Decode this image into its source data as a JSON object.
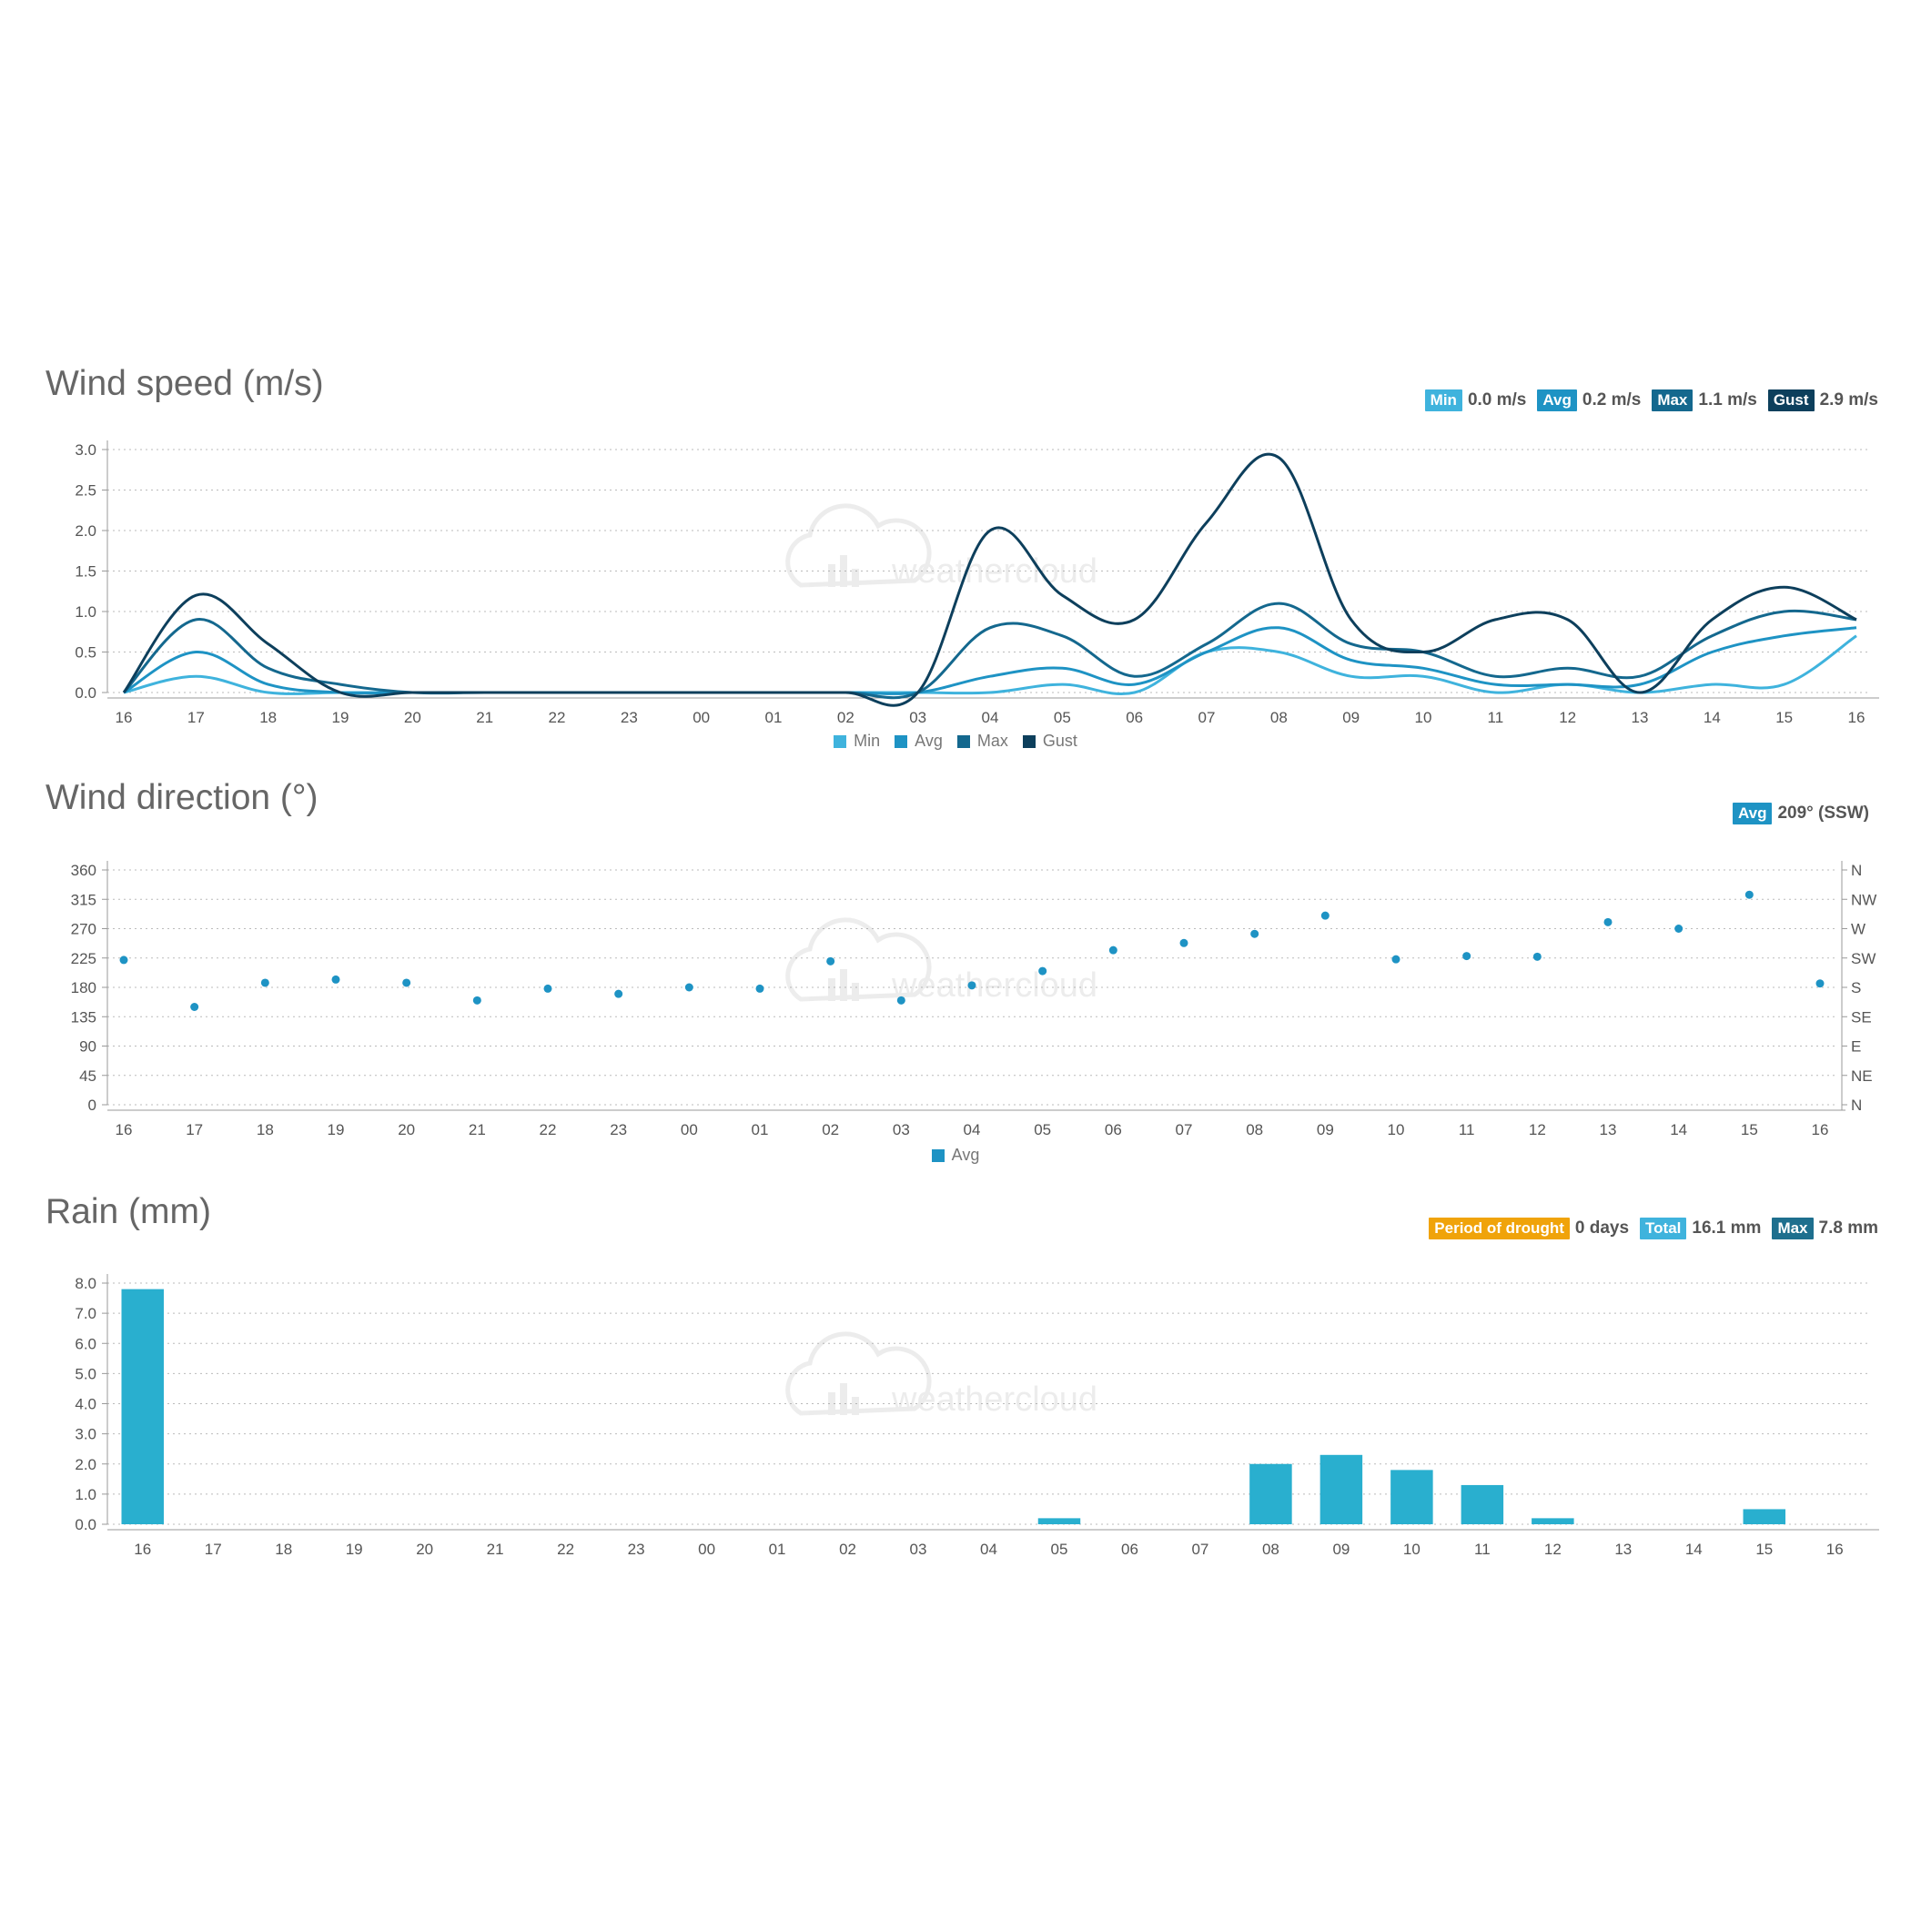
{
  "wind_speed": {
    "title": "Wind speed (m/s)",
    "stats": [
      {
        "label": "Min",
        "value": "0.0 m/s",
        "color": "#3fb3dd"
      },
      {
        "label": "Avg",
        "value": "0.2 m/s",
        "color": "#1e93c4"
      },
      {
        "label": "Max",
        "value": "1.1 m/s",
        "color": "#14688e"
      },
      {
        "label": "Gust",
        "value": "2.9 m/s",
        "color": "#0d3f5c"
      }
    ],
    "legend": [
      {
        "label": "Min",
        "color": "#3fb3dd"
      },
      {
        "label": "Avg",
        "color": "#1e93c4"
      },
      {
        "label": "Max",
        "color": "#14688e"
      },
      {
        "label": "Gust",
        "color": "#0d3f5c"
      }
    ]
  },
  "wind_direction": {
    "title": "Wind direction (°)",
    "stats": [
      {
        "label": "Avg",
        "value": "209° (SSW)",
        "color": "#1e93c4"
      }
    ],
    "legend": [
      {
        "label": "Avg",
        "color": "#1e93c4"
      }
    ]
  },
  "rain": {
    "title": "Rain (mm)",
    "stats": [
      {
        "label": "Period of drought",
        "value": "0 days",
        "color": "#f0a30a"
      },
      {
        "label": "Total",
        "value": "16.1 mm",
        "color": "#3fb3dd"
      },
      {
        "label": "Max",
        "value": "7.8 mm",
        "color": "#1e6f8e"
      }
    ]
  },
  "watermark": "weathercloud",
  "chart_data": [
    {
      "type": "line",
      "title": "Wind speed (m/s)",
      "categories": [
        "16",
        "17",
        "18",
        "19",
        "20",
        "21",
        "22",
        "23",
        "00",
        "01",
        "02",
        "03",
        "04",
        "05",
        "06",
        "07",
        "08",
        "09",
        "10",
        "11",
        "12",
        "13",
        "14",
        "15",
        "16"
      ],
      "ylim": [
        0,
        3.0
      ],
      "yticks": [
        "0.0",
        "0.5",
        "1.0",
        "1.5",
        "2.0",
        "2.5",
        "3.0"
      ],
      "grid": true,
      "legend_position": "bottom",
      "series": [
        {
          "name": "Min",
          "color": "#3fb3dd",
          "values": [
            0,
            0.2,
            0,
            0,
            0,
            0,
            0,
            0,
            0,
            0,
            0,
            0,
            0,
            0.1,
            0,
            0.5,
            0.5,
            0.2,
            0.2,
            0,
            0.1,
            0,
            0.1,
            0.1,
            0.7
          ]
        },
        {
          "name": "Avg",
          "color": "#1e93c4",
          "values": [
            0,
            0.5,
            0.1,
            0,
            0,
            0,
            0,
            0,
            0,
            0,
            0,
            0,
            0.2,
            0.3,
            0.1,
            0.5,
            0.8,
            0.4,
            0.3,
            0.1,
            0.1,
            0.1,
            0.5,
            0.7,
            0.8
          ]
        },
        {
          "name": "Max",
          "color": "#14688e",
          "values": [
            0,
            0.9,
            0.3,
            0.1,
            0,
            0,
            0,
            0,
            0,
            0,
            0,
            0,
            0.8,
            0.7,
            0.2,
            0.6,
            1.1,
            0.6,
            0.5,
            0.2,
            0.3,
            0.2,
            0.7,
            1.0,
            0.9
          ]
        },
        {
          "name": "Gust",
          "color": "#0d3f5c",
          "values": [
            0,
            1.2,
            0.6,
            0,
            0,
            0,
            0,
            0,
            0,
            0,
            0,
            0,
            2.0,
            1.2,
            0.9,
            2.1,
            2.9,
            0.9,
            0.5,
            0.9,
            0.9,
            0,
            0.9,
            1.3,
            0.9
          ]
        }
      ]
    },
    {
      "type": "scatter",
      "title": "Wind direction (°)",
      "categories": [
        "16",
        "17",
        "18",
        "19",
        "20",
        "21",
        "22",
        "23",
        "00",
        "01",
        "02",
        "03",
        "04",
        "05",
        "06",
        "07",
        "08",
        "09",
        "10",
        "11",
        "12",
        "13",
        "14",
        "15",
        "16"
      ],
      "ylim": [
        0,
        360
      ],
      "yticks": [
        "0",
        "45",
        "90",
        "135",
        "180",
        "225",
        "270",
        "315",
        "360"
      ],
      "yticks_right": [
        "N",
        "NE",
        "E",
        "SE",
        "S",
        "SW",
        "W",
        "NW",
        "N"
      ],
      "grid": true,
      "legend_position": "bottom",
      "series": [
        {
          "name": "Avg",
          "color": "#1e93c4",
          "values": [
            222,
            150,
            187,
            192,
            187,
            160,
            178,
            170,
            180,
            178,
            220,
            160,
            183,
            205,
            237,
            248,
            262,
            290,
            223,
            228,
            227,
            280,
            270,
            322,
            186
          ]
        }
      ]
    },
    {
      "type": "bar",
      "title": "Rain (mm)",
      "categories": [
        "16",
        "17",
        "18",
        "19",
        "20",
        "21",
        "22",
        "23",
        "00",
        "01",
        "02",
        "03",
        "04",
        "05",
        "06",
        "07",
        "08",
        "09",
        "10",
        "11",
        "12",
        "13",
        "14",
        "15",
        "16"
      ],
      "ylim": [
        0,
        8.0
      ],
      "yticks": [
        "0.0",
        "1.0",
        "2.0",
        "3.0",
        "4.0",
        "5.0",
        "6.0",
        "7.0",
        "8.0"
      ],
      "grid": true,
      "series": [
        {
          "color": "#29afcf",
          "values": [
            7.8,
            0,
            0,
            0,
            0,
            0,
            0,
            0,
            0,
            0,
            0,
            0,
            0,
            0.2,
            0,
            0,
            2.0,
            2.3,
            1.8,
            1.3,
            0.2,
            0,
            0,
            0.5,
            0
          ]
        }
      ]
    }
  ]
}
